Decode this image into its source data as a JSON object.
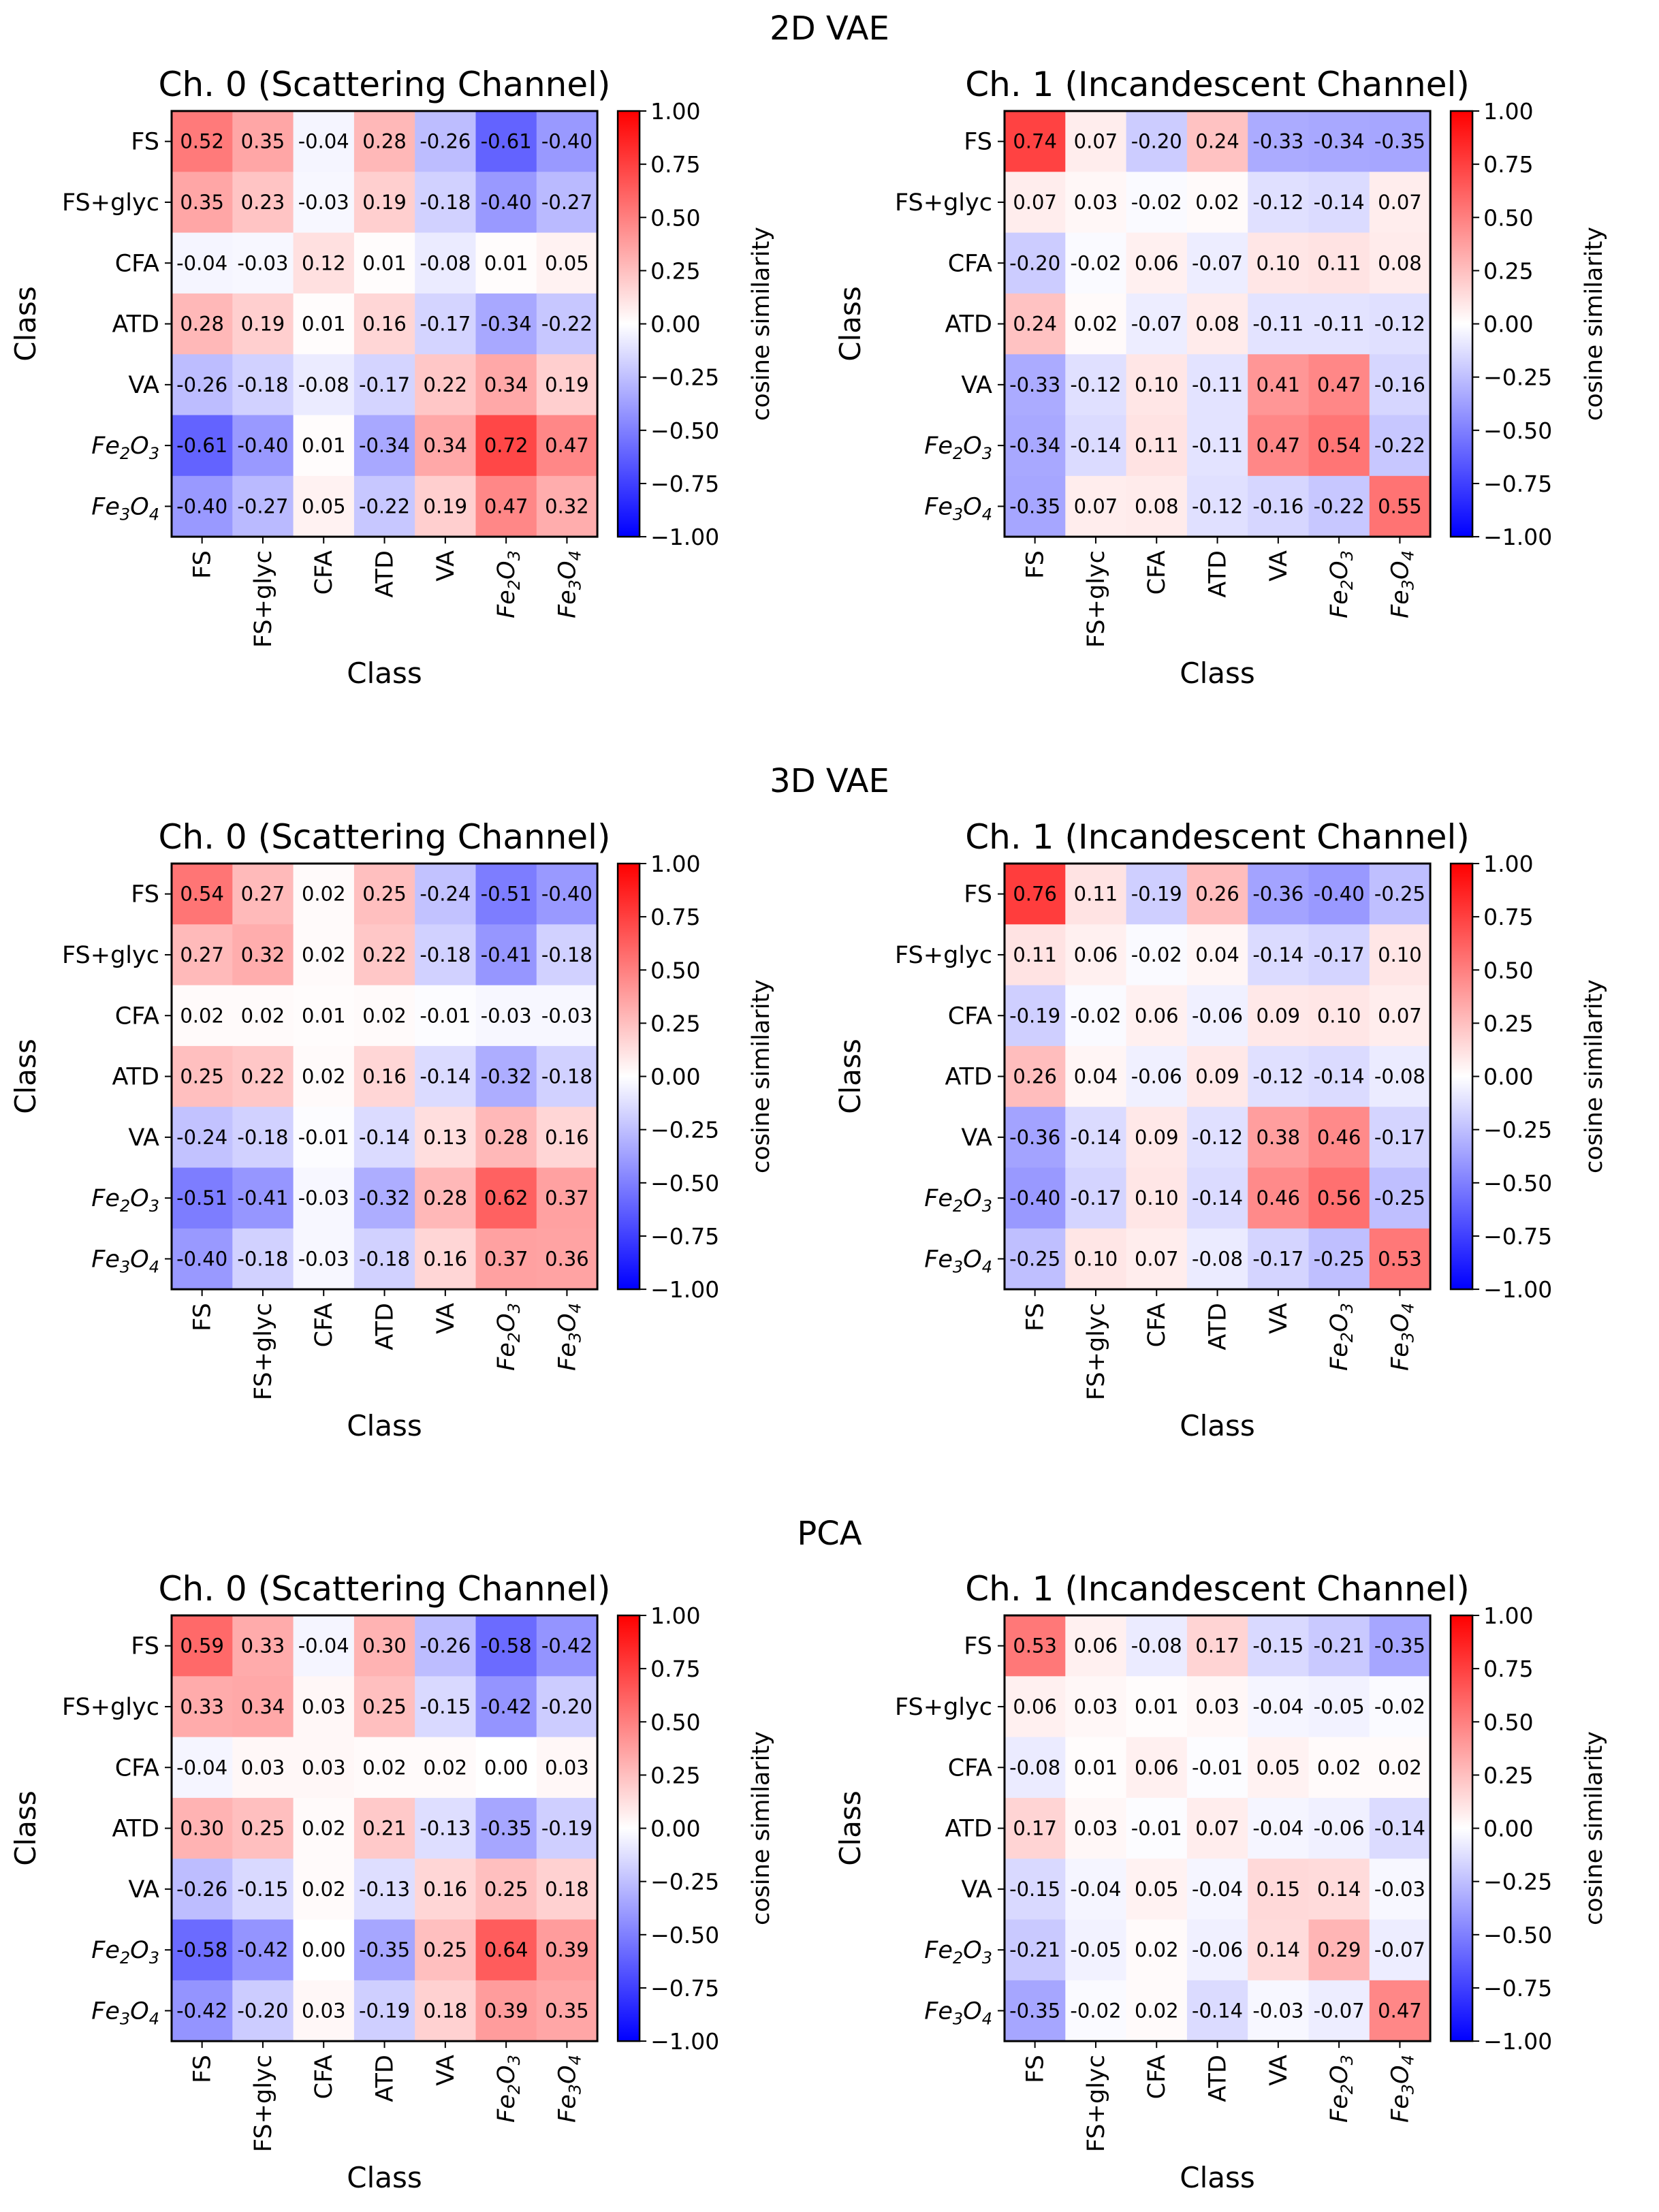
{
  "chart_data": [
    {
      "type": "heatmap",
      "group": "2D VAE",
      "title": "Ch. 0 (Scattering Channel)",
      "xlabel": "Class",
      "ylabel": "Class",
      "categories": [
        "FS",
        "FS+glyc",
        "CFA",
        "ATD",
        "VA",
        "Fe2O3",
        "Fe3O4"
      ],
      "colorbar": {
        "label": "cosine similarity",
        "range": [
          -1.0,
          1.0
        ],
        "ticks": [
          "1.00",
          "0.75",
          "0.50",
          "0.25",
          "0.00",
          "−0.25",
          "−0.50",
          "−0.75",
          "−1.00"
        ],
        "colormap": "bwr"
      },
      "values": [
        [
          0.52,
          0.35,
          -0.04,
          0.28,
          -0.26,
          -0.61,
          -0.4
        ],
        [
          0.35,
          0.23,
          -0.03,
          0.19,
          -0.18,
          -0.4,
          -0.27
        ],
        [
          -0.04,
          -0.03,
          0.12,
          0.01,
          -0.08,
          0.01,
          0.05
        ],
        [
          0.28,
          0.19,
          0.01,
          0.16,
          -0.17,
          -0.34,
          -0.22
        ],
        [
          -0.26,
          -0.18,
          -0.08,
          -0.17,
          0.22,
          0.34,
          0.19
        ],
        [
          -0.61,
          -0.4,
          0.01,
          -0.34,
          0.34,
          0.72,
          0.47
        ],
        [
          -0.4,
          -0.27,
          0.05,
          -0.22,
          0.19,
          0.47,
          0.32
        ]
      ]
    },
    {
      "type": "heatmap",
      "group": "2D VAE",
      "title": "Ch. 1 (Incandescent Channel)",
      "xlabel": "Class",
      "ylabel": "Class",
      "categories": [
        "FS",
        "FS+glyc",
        "CFA",
        "ATD",
        "VA",
        "Fe2O3",
        "Fe3O4"
      ],
      "colorbar": {
        "label": "cosine similarity",
        "range": [
          -1.0,
          1.0
        ],
        "ticks": [
          "1.00",
          "0.75",
          "0.50",
          "0.25",
          "0.00",
          "−0.25",
          "−0.50",
          "−0.75",
          "−1.00"
        ],
        "colormap": "bwr"
      },
      "values": [
        [
          0.74,
          0.07,
          -0.2,
          0.24,
          -0.33,
          -0.34,
          -0.35
        ],
        [
          0.07,
          0.03,
          -0.02,
          0.02,
          -0.12,
          -0.14,
          0.07
        ],
        [
          -0.2,
          -0.02,
          0.06,
          -0.07,
          0.1,
          0.11,
          0.08
        ],
        [
          0.24,
          0.02,
          -0.07,
          0.08,
          -0.11,
          -0.11,
          -0.12
        ],
        [
          -0.33,
          -0.12,
          0.1,
          -0.11,
          0.41,
          0.47,
          -0.16
        ],
        [
          -0.34,
          -0.14,
          0.11,
          -0.11,
          0.47,
          0.54,
          -0.22
        ],
        [
          -0.35,
          0.07,
          0.08,
          -0.12,
          -0.16,
          -0.22,
          0.55
        ]
      ]
    },
    {
      "type": "heatmap",
      "group": "3D VAE",
      "title": "Ch. 0 (Scattering Channel)",
      "xlabel": "Class",
      "ylabel": "Class",
      "categories": [
        "FS",
        "FS+glyc",
        "CFA",
        "ATD",
        "VA",
        "Fe2O3",
        "Fe3O4"
      ],
      "colorbar": {
        "label": "cosine similarity",
        "range": [
          -1.0,
          1.0
        ],
        "ticks": [
          "1.00",
          "0.75",
          "0.50",
          "0.25",
          "0.00",
          "−0.25",
          "−0.50",
          "−0.75",
          "−1.00"
        ],
        "colormap": "bwr"
      },
      "values": [
        [
          0.54,
          0.27,
          0.02,
          0.25,
          -0.24,
          -0.51,
          -0.4
        ],
        [
          0.27,
          0.32,
          0.02,
          0.22,
          -0.18,
          -0.41,
          -0.18
        ],
        [
          0.02,
          0.02,
          0.01,
          0.02,
          -0.01,
          -0.03,
          -0.03
        ],
        [
          0.25,
          0.22,
          0.02,
          0.16,
          -0.14,
          -0.32,
          -0.18
        ],
        [
          -0.24,
          -0.18,
          -0.01,
          -0.14,
          0.13,
          0.28,
          0.16
        ],
        [
          -0.51,
          -0.41,
          -0.03,
          -0.32,
          0.28,
          0.62,
          0.37
        ],
        [
          -0.4,
          -0.18,
          -0.03,
          -0.18,
          0.16,
          0.37,
          0.36
        ]
      ]
    },
    {
      "type": "heatmap",
      "group": "3D VAE",
      "title": "Ch. 1 (Incandescent Channel)",
      "xlabel": "Class",
      "ylabel": "Class",
      "categories": [
        "FS",
        "FS+glyc",
        "CFA",
        "ATD",
        "VA",
        "Fe2O3",
        "Fe3O4"
      ],
      "colorbar": {
        "label": "cosine similarity",
        "range": [
          -1.0,
          1.0
        ],
        "ticks": [
          "1.00",
          "0.75",
          "0.50",
          "0.25",
          "0.00",
          "−0.25",
          "−0.50",
          "−0.75",
          "−1.00"
        ],
        "colormap": "bwr"
      },
      "values": [
        [
          0.76,
          0.11,
          -0.19,
          0.26,
          -0.36,
          -0.4,
          -0.25
        ],
        [
          0.11,
          0.06,
          -0.02,
          0.04,
          -0.14,
          -0.17,
          0.1
        ],
        [
          -0.19,
          -0.02,
          0.06,
          -0.06,
          0.09,
          0.1,
          0.07
        ],
        [
          0.26,
          0.04,
          -0.06,
          0.09,
          -0.12,
          -0.14,
          -0.08
        ],
        [
          -0.36,
          -0.14,
          0.09,
          -0.12,
          0.38,
          0.46,
          -0.17
        ],
        [
          -0.4,
          -0.17,
          0.1,
          -0.14,
          0.46,
          0.56,
          -0.25
        ],
        [
          -0.25,
          0.1,
          0.07,
          -0.08,
          -0.17,
          -0.25,
          0.53
        ]
      ]
    },
    {
      "type": "heatmap",
      "group": "PCA",
      "title": "Ch. 0 (Scattering Channel)",
      "xlabel": "Class",
      "ylabel": "Class",
      "categories": [
        "FS",
        "FS+glyc",
        "CFA",
        "ATD",
        "VA",
        "Fe2O3",
        "Fe3O4"
      ],
      "colorbar": {
        "label": "cosine similarity",
        "range": [
          -1.0,
          1.0
        ],
        "ticks": [
          "1.00",
          "0.75",
          "0.50",
          "0.25",
          "0.00",
          "−0.25",
          "−0.50",
          "−0.75",
          "−1.00"
        ],
        "colormap": "bwr"
      },
      "values": [
        [
          0.59,
          0.33,
          -0.04,
          0.3,
          -0.26,
          -0.58,
          -0.42
        ],
        [
          0.33,
          0.34,
          0.03,
          0.25,
          -0.15,
          -0.42,
          -0.2
        ],
        [
          -0.04,
          0.03,
          0.03,
          0.02,
          0.02,
          0.0,
          0.03
        ],
        [
          0.3,
          0.25,
          0.02,
          0.21,
          -0.13,
          -0.35,
          -0.19
        ],
        [
          -0.26,
          -0.15,
          0.02,
          -0.13,
          0.16,
          0.25,
          0.18
        ],
        [
          -0.58,
          -0.42,
          0.0,
          -0.35,
          0.25,
          0.64,
          0.39
        ],
        [
          -0.42,
          -0.2,
          0.03,
          -0.19,
          0.18,
          0.39,
          0.35
        ]
      ]
    },
    {
      "type": "heatmap",
      "group": "PCA",
      "title": "Ch. 1 (Incandescent Channel)",
      "xlabel": "Class",
      "ylabel": "Class",
      "categories": [
        "FS",
        "FS+glyc",
        "CFA",
        "ATD",
        "VA",
        "Fe2O3",
        "Fe3O4"
      ],
      "colorbar": {
        "label": "cosine similarity",
        "range": [
          -1.0,
          1.0
        ],
        "ticks": [
          "1.00",
          "0.75",
          "0.50",
          "0.25",
          "0.00",
          "−0.25",
          "−0.50",
          "−0.75",
          "−1.00"
        ],
        "colormap": "bwr"
      },
      "values": [
        [
          0.53,
          0.06,
          -0.08,
          0.17,
          -0.15,
          -0.21,
          -0.35
        ],
        [
          0.06,
          0.03,
          0.01,
          0.03,
          -0.04,
          -0.05,
          -0.02
        ],
        [
          -0.08,
          0.01,
          0.06,
          -0.01,
          0.05,
          0.02,
          0.02
        ],
        [
          0.17,
          0.03,
          -0.01,
          0.07,
          -0.04,
          -0.06,
          -0.14
        ],
        [
          -0.15,
          -0.04,
          0.05,
          -0.04,
          0.15,
          0.14,
          -0.03
        ],
        [
          -0.21,
          -0.05,
          0.02,
          -0.06,
          0.14,
          0.29,
          -0.07
        ],
        [
          -0.35,
          -0.02,
          0.02,
          -0.14,
          -0.03,
          -0.07,
          0.47
        ]
      ]
    }
  ],
  "suptitles": [
    "2D VAE",
    "3D VAE",
    "PCA"
  ],
  "label_display": {
    "Fe2O3": {
      "base": "Fe",
      "sub1": "2",
      "mid": "O",
      "sub2": "3"
    },
    "Fe3O4": {
      "base": "Fe",
      "sub1": "3",
      "mid": "O",
      "sub2": "4"
    }
  },
  "colors": {
    "low": "#0000ff",
    "mid": "#ffffff",
    "high": "#ff0000",
    "text": "#000000"
  }
}
